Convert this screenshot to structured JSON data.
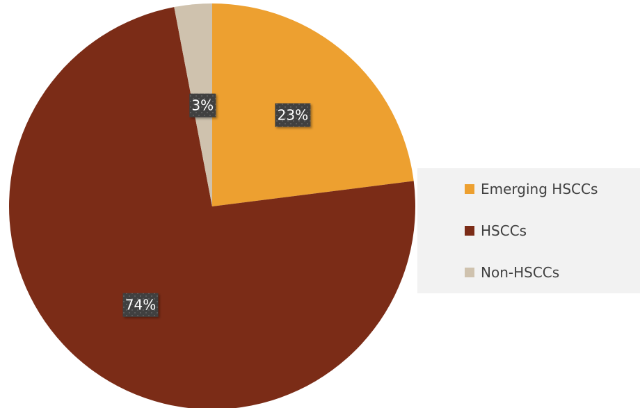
{
  "chart_data": {
    "type": "pie",
    "title": "",
    "start_angle_deg": 0,
    "direction": "clockwise",
    "slices": [
      {
        "label": "Emerging HSCCs",
        "value": 23,
        "display": "23%",
        "color": "#EDA030"
      },
      {
        "label": "HSCCs",
        "value": 74,
        "display": "74%",
        "color": "#7B2C17"
      },
      {
        "label": "Non-HSCCs",
        "value": 3,
        "display": "3%",
        "color": "#CFC2AE"
      }
    ],
    "legend": {
      "position": "right",
      "entries": [
        "Emerging HSCCs",
        "HSCCs",
        "Non-HSCCs"
      ]
    },
    "colors": {
      "data_label_bg": "#3F3F3F",
      "legend_bg": "#F2F2F2",
      "legend_text": "#404040"
    }
  }
}
